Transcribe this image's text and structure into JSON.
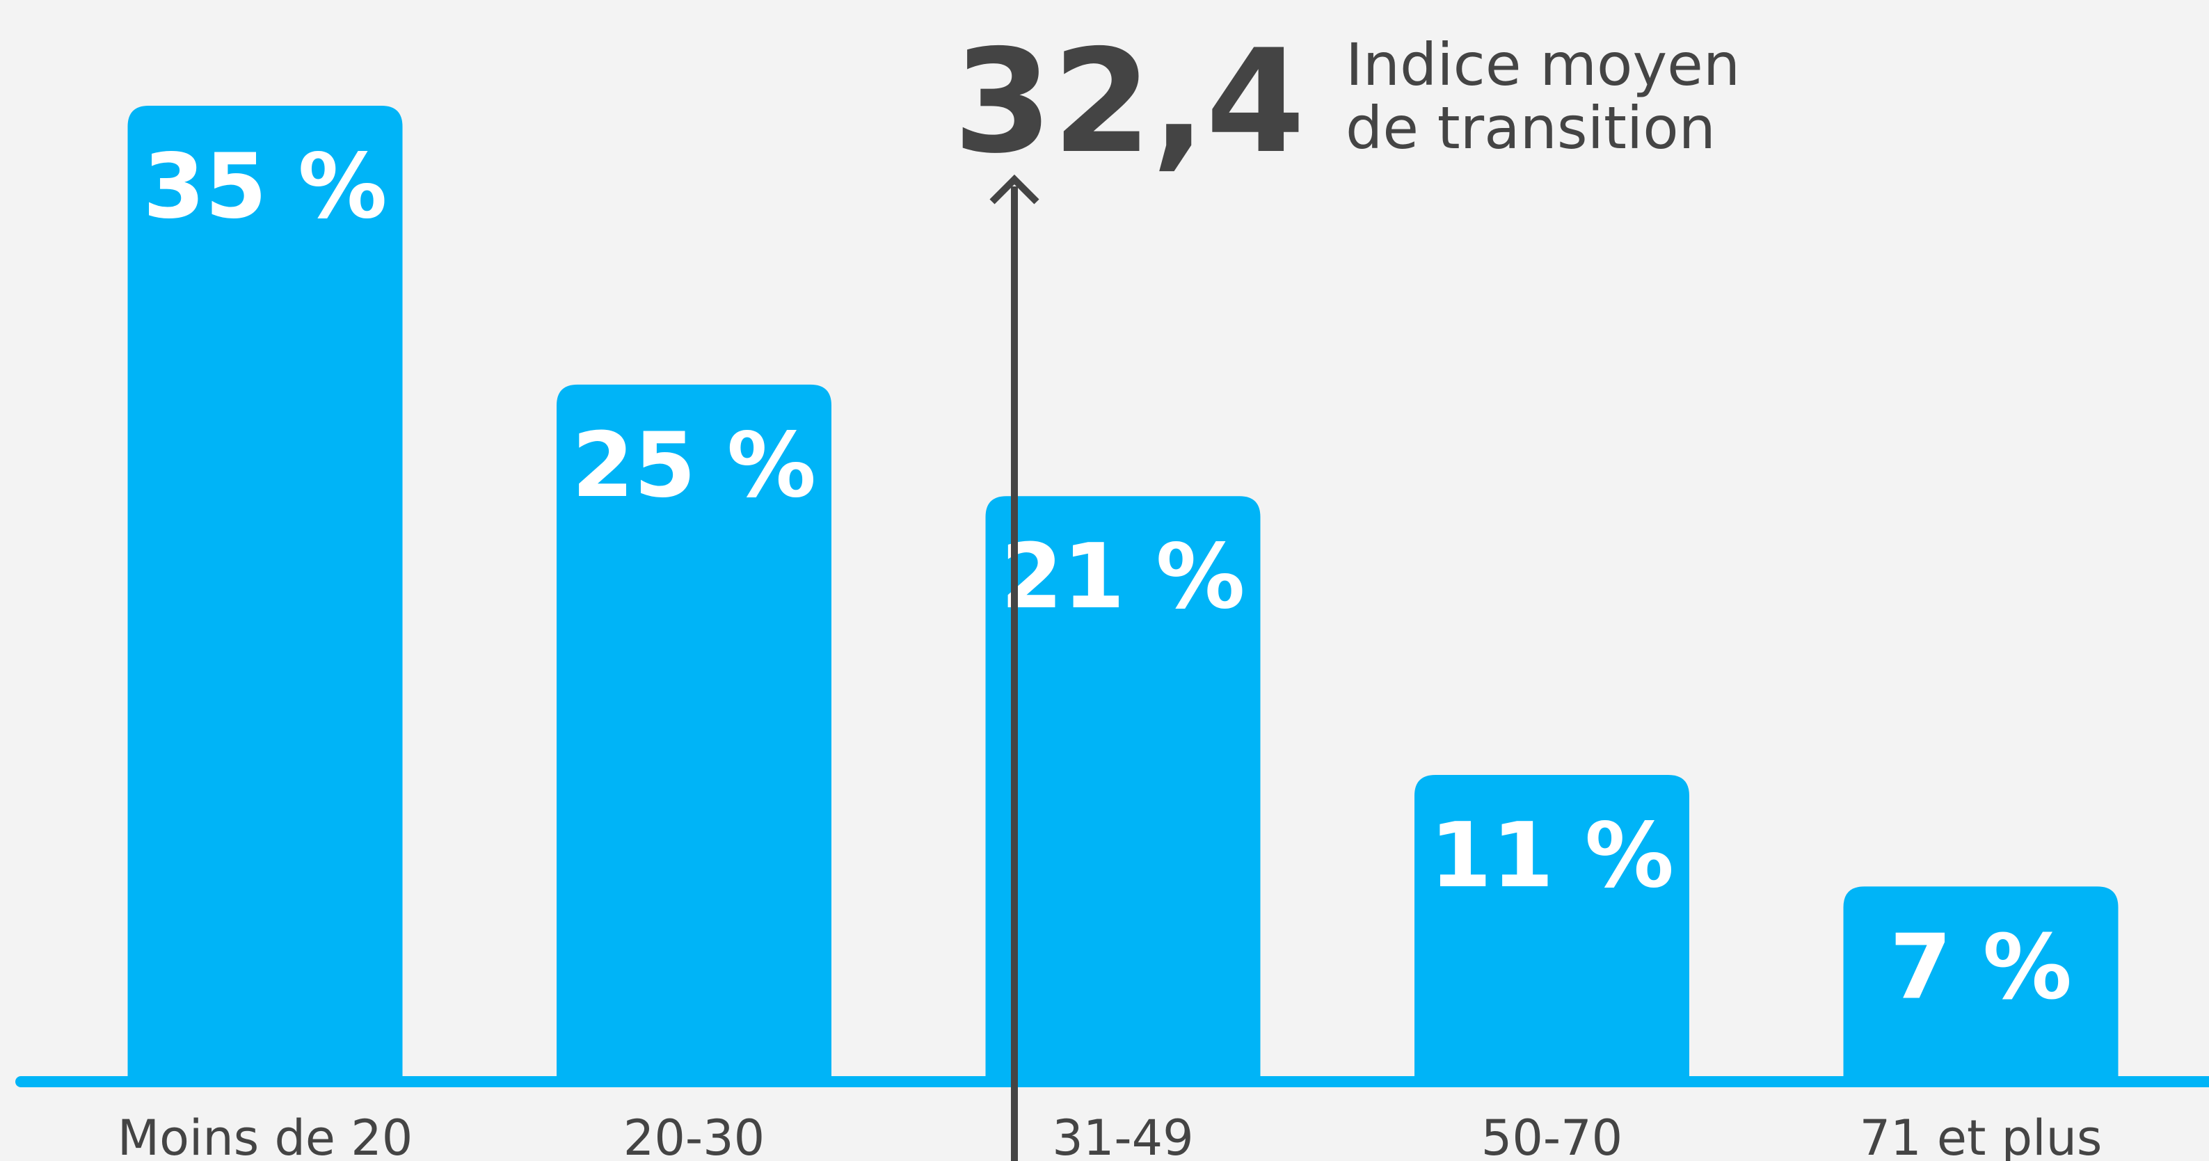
{
  "chart_data": {
    "type": "bar",
    "categories": [
      "Moins de 20",
      "20-30",
      "31-49",
      "50-70",
      "71 et plus"
    ],
    "values": [
      35,
      25,
      21,
      11,
      7
    ],
    "value_labels": [
      "35 %",
      "25 %",
      "21 %",
      "11 %",
      "7 %"
    ],
    "color": "#00b4f7",
    "ylim": [
      0,
      35
    ],
    "annotation": {
      "value": 32.4,
      "label": "32,4",
      "text": [
        "Indice moyen",
        "de transition"
      ]
    }
  }
}
